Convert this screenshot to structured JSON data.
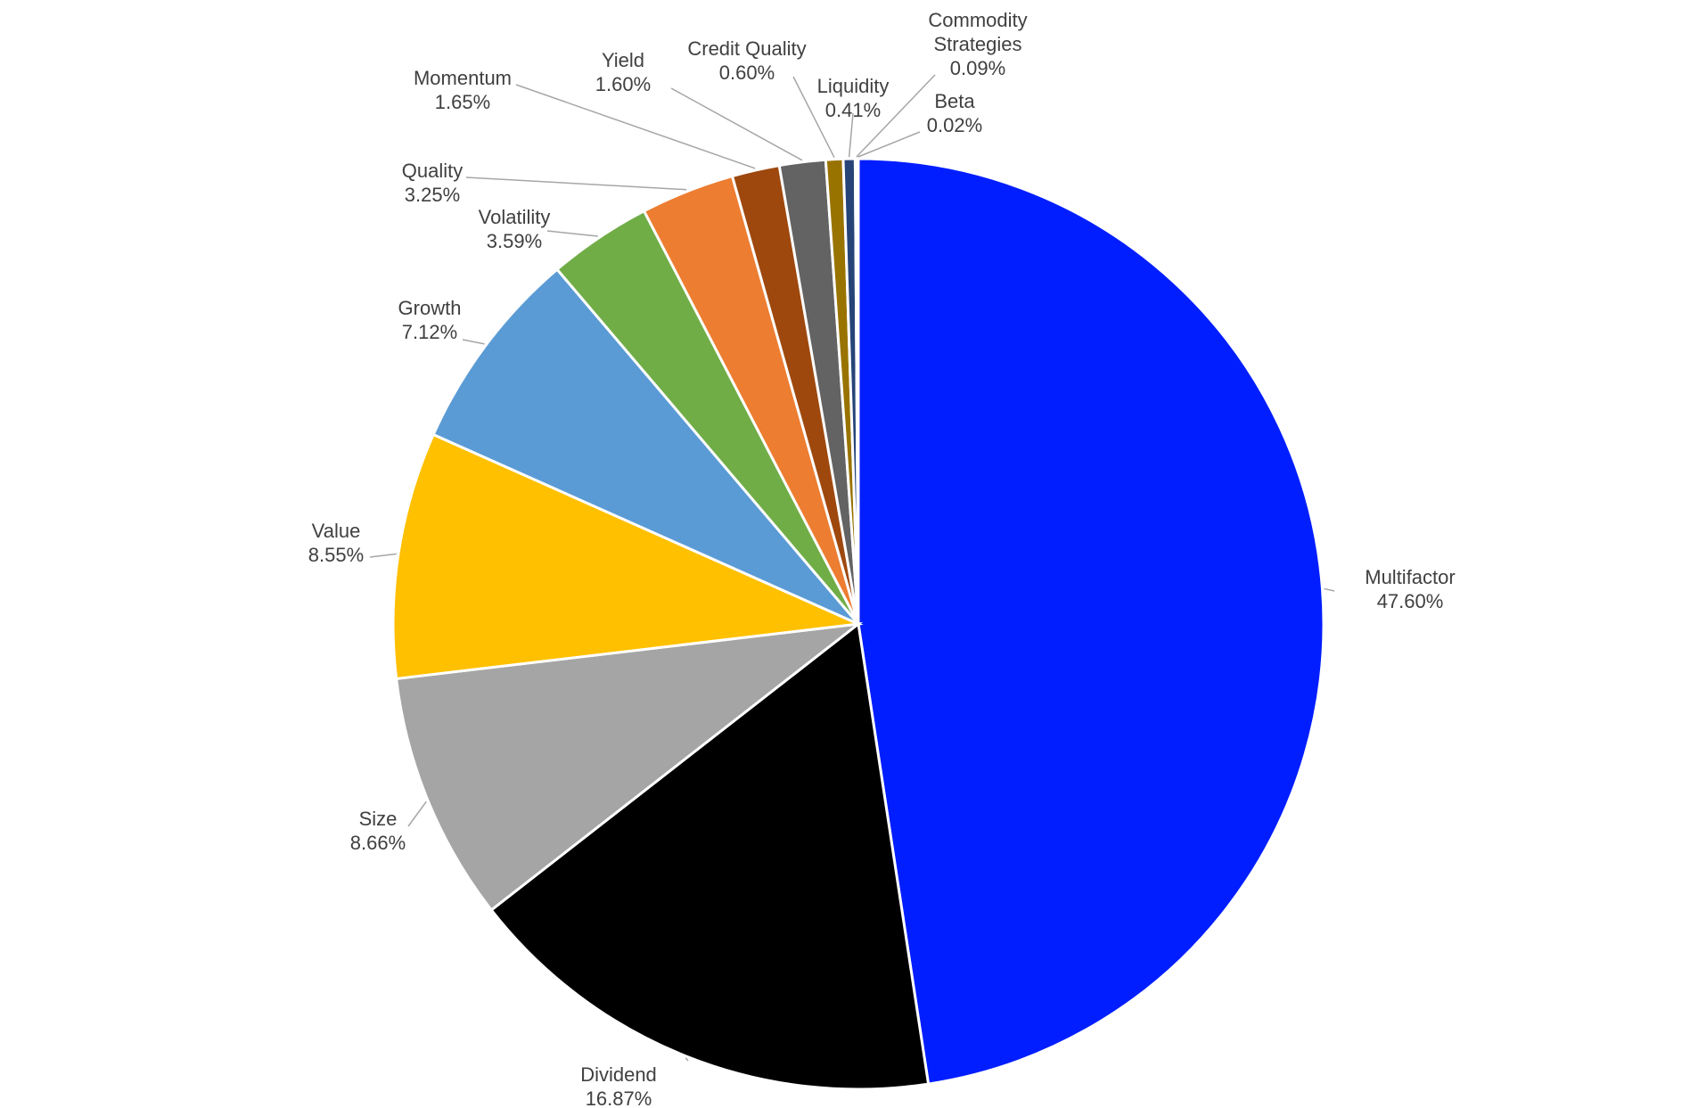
{
  "chart_data": {
    "type": "pie",
    "title": "",
    "slices": [
      {
        "name": "Multifactor",
        "pct": "47.60%",
        "value": 47.6,
        "color": "#001EFF"
      },
      {
        "name": "Dividend",
        "pct": "16.87%",
        "value": 16.87,
        "color": "#000000"
      },
      {
        "name": "Size",
        "pct": "8.66%",
        "value": 8.66,
        "color": "#A5A5A5"
      },
      {
        "name": "Value",
        "pct": "8.55%",
        "value": 8.55,
        "color": "#FFC000"
      },
      {
        "name": "Growth",
        "pct": "7.12%",
        "value": 7.12,
        "color": "#5B9BD5"
      },
      {
        "name": "Volatility",
        "pct": "3.59%",
        "value": 3.59,
        "color": "#70AD47"
      },
      {
        "name": "Quality",
        "pct": "3.25%",
        "value": 3.25,
        "color": "#ED7D31"
      },
      {
        "name": "Momentum",
        "pct": "1.65%",
        "value": 1.65,
        "color": "#9E480E"
      },
      {
        "name": "Yield",
        "pct": "1.60%",
        "value": 1.6,
        "color": "#636363"
      },
      {
        "name": "Credit Quality",
        "pct": "0.60%",
        "value": 0.6,
        "color": "#997300"
      },
      {
        "name": "Liquidity",
        "pct": "0.41%",
        "value": 0.41,
        "color": "#264478"
      },
      {
        "name": "Commodity Strategies",
        "pct": "0.09%",
        "value": 0.09,
        "color": "#43682B"
      },
      {
        "name": "Beta",
        "pct": "0.02%",
        "value": 0.02,
        "color": "#7CAFDD"
      }
    ],
    "legend": "none",
    "label_style": "outside-with-leader-lines"
  }
}
